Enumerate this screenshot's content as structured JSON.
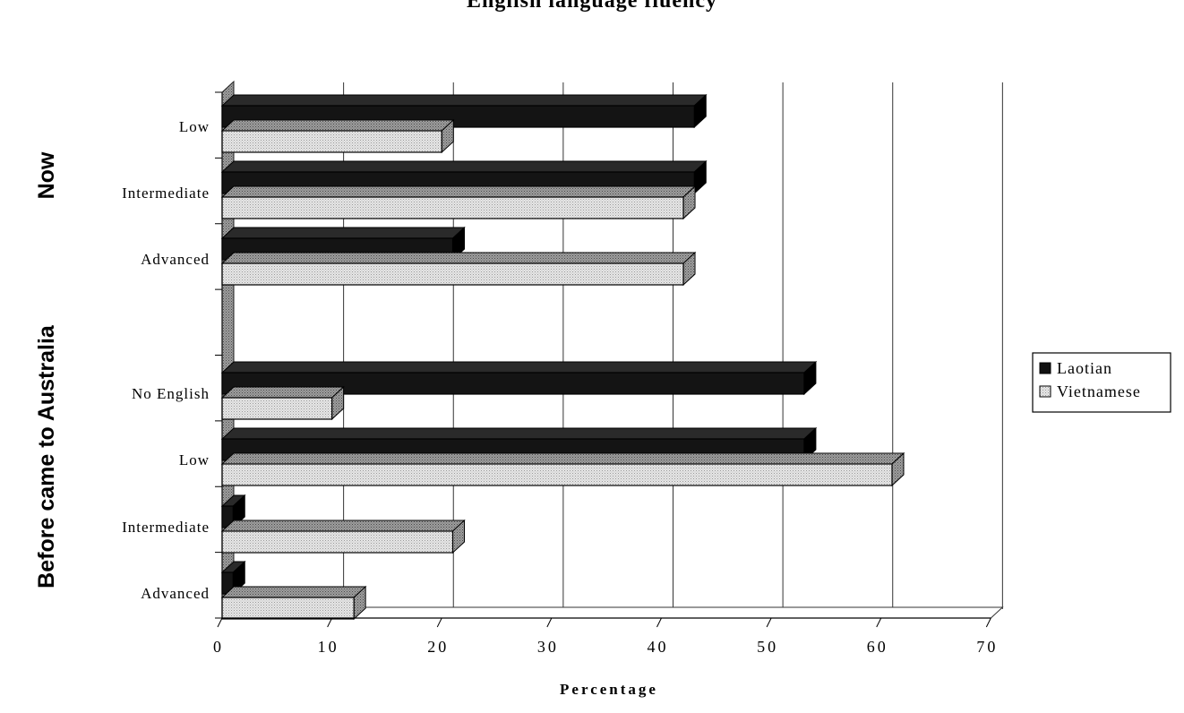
{
  "chart_data": {
    "type": "bar",
    "orientation": "horizontal",
    "style": "3d",
    "title": "English language fluency",
    "xlabel": "Percentage",
    "xlim": [
      0,
      70
    ],
    "xticks": [
      0,
      10,
      20,
      30,
      40,
      50,
      60,
      70
    ],
    "grid": true,
    "legend_position": "right",
    "groups": [
      {
        "label": "Now",
        "categories": [
          "Low",
          "Intermediate",
          "Advanced"
        ]
      },
      {
        "label": "Before came to Australia",
        "categories": [
          "No English",
          "Low",
          "Intermediate",
          "Advanced"
        ]
      }
    ],
    "categories": [
      "Low",
      "Intermediate",
      "Advanced",
      "No English",
      "Low",
      "Intermediate",
      "Advanced"
    ],
    "series": [
      {
        "name": "Laotian",
        "color": "#111111",
        "values": [
          43,
          43,
          21,
          53,
          53,
          1,
          1
        ]
      },
      {
        "name": "Vietnamese",
        "color": "#e4e4e4",
        "values": [
          20,
          42,
          42,
          10,
          61,
          21,
          12
        ]
      }
    ]
  }
}
